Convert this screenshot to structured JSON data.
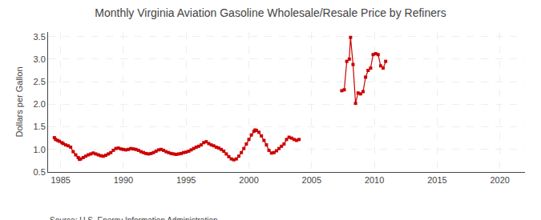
{
  "chart_data": {
    "type": "line",
    "title": "Monthly Virginia Aviation Gasoline Wholesale/Resale Price by Refiners",
    "ylabel": "Dollars per Gallon",
    "annotations": [
      "Source: U.S. Energy Information Administration"
    ],
    "xlim": [
      1984.0,
      2022.0
    ],
    "ylim": [
      0.5,
      3.6
    ],
    "xticks": [
      1985,
      1990,
      1995,
      2000,
      2005,
      2010,
      2015,
      2020
    ],
    "yticks": [
      0.5,
      {
        "value": 1.0,
        "label": "1.0"
      },
      1.5,
      {
        "value": 2.0,
        "label": "2.0"
      },
      2.5,
      {
        "value": 3.0,
        "label": "3.0"
      },
      3.5
    ],
    "grid": true,
    "series": [
      {
        "color": "#cc0000",
        "marker": "square",
        "line_style": "solid",
        "x": [
          1984.5,
          1984.6,
          1984.75,
          1984.9,
          1985.1,
          1985.2,
          1985.4,
          1985.6,
          1985.8,
          1986.0,
          1986.2,
          1986.4,
          1986.5,
          1986.6,
          1986.8,
          1987.0,
          1987.2,
          1987.4,
          1987.6,
          1987.8,
          1988.0,
          1988.2,
          1988.4,
          1988.6,
          1988.8,
          1989.0,
          1989.2,
          1989.4,
          1989.6,
          1989.8,
          1990.0,
          1990.2,
          1990.4,
          1990.6,
          1990.8,
          1991.0,
          1991.2,
          1991.4,
          1991.6,
          1991.8,
          1992.0,
          1992.2,
          1992.4,
          1992.6,
          1992.8,
          1993.0,
          1993.2,
          1993.4,
          1993.6,
          1993.8,
          1994.0,
          1994.2,
          1994.4,
          1994.6,
          1994.8,
          1995.0,
          1995.2,
          1995.4,
          1995.6,
          1995.8,
          1996.0,
          1996.2,
          1996.4,
          1996.6,
          1996.8,
          1997.0,
          1997.2,
          1997.4,
          1997.6,
          1997.8,
          1998.0,
          1998.2,
          1998.4,
          1998.6,
          1998.8,
          1999.0,
          1999.2,
          1999.4,
          1999.6,
          1999.8,
          2000.0,
          2000.2,
          2000.4,
          2000.5,
          2000.6,
          2000.8,
          2001.0,
          2001.2,
          2001.4,
          2001.6,
          2001.8,
          2002.0,
          2002.2,
          2002.4,
          2002.6,
          2002.8,
          2003.0,
          2003.2,
          2003.4,
          2003.6,
          2003.8,
          2004.0
        ],
        "values": [
          1.26,
          1.22,
          1.2,
          1.18,
          1.15,
          1.13,
          1.1,
          1.08,
          1.05,
          0.95,
          0.88,
          0.82,
          0.78,
          0.79,
          0.82,
          0.85,
          0.88,
          0.9,
          0.92,
          0.9,
          0.88,
          0.86,
          0.85,
          0.87,
          0.9,
          0.93,
          0.98,
          1.02,
          1.03,
          1.01,
          1.0,
          0.99,
          1.0,
          1.02,
          1.01,
          1.0,
          0.98,
          0.95,
          0.93,
          0.91,
          0.9,
          0.91,
          0.93,
          0.96,
          0.99,
          1.0,
          0.98,
          0.95,
          0.93,
          0.91,
          0.9,
          0.89,
          0.9,
          0.91,
          0.93,
          0.94,
          0.96,
          0.99,
          1.02,
          1.05,
          1.07,
          1.1,
          1.15,
          1.17,
          1.13,
          1.1,
          1.08,
          1.05,
          1.03,
          1.0,
          0.96,
          0.9,
          0.84,
          0.79,
          0.77,
          0.79,
          0.85,
          0.93,
          1.02,
          1.12,
          1.22,
          1.32,
          1.4,
          1.43,
          1.42,
          1.38,
          1.3,
          1.2,
          1.1,
          0.98,
          0.92,
          0.93,
          0.97,
          1.02,
          1.07,
          1.12,
          1.22,
          1.27,
          1.25,
          1.22,
          1.2,
          1.22
        ]
      },
      {
        "color": "#cc0000",
        "marker": "square",
        "line_style": "solid",
        "x": [
          2007.4,
          2007.6,
          2007.8,
          2008.0,
          2008.1,
          2008.3,
          2008.5,
          2008.7,
          2008.9,
          2009.1,
          2009.3,
          2009.5,
          2009.7,
          2009.9,
          2010.1,
          2010.3,
          2010.5,
          2010.7,
          2010.9
        ],
        "values": [
          2.3,
          2.32,
          2.95,
          3.0,
          3.48,
          2.88,
          2.02,
          2.25,
          2.23,
          2.28,
          2.6,
          2.75,
          2.8,
          3.1,
          3.12,
          3.1,
          2.85,
          2.8,
          2.95
        ]
      }
    ]
  }
}
